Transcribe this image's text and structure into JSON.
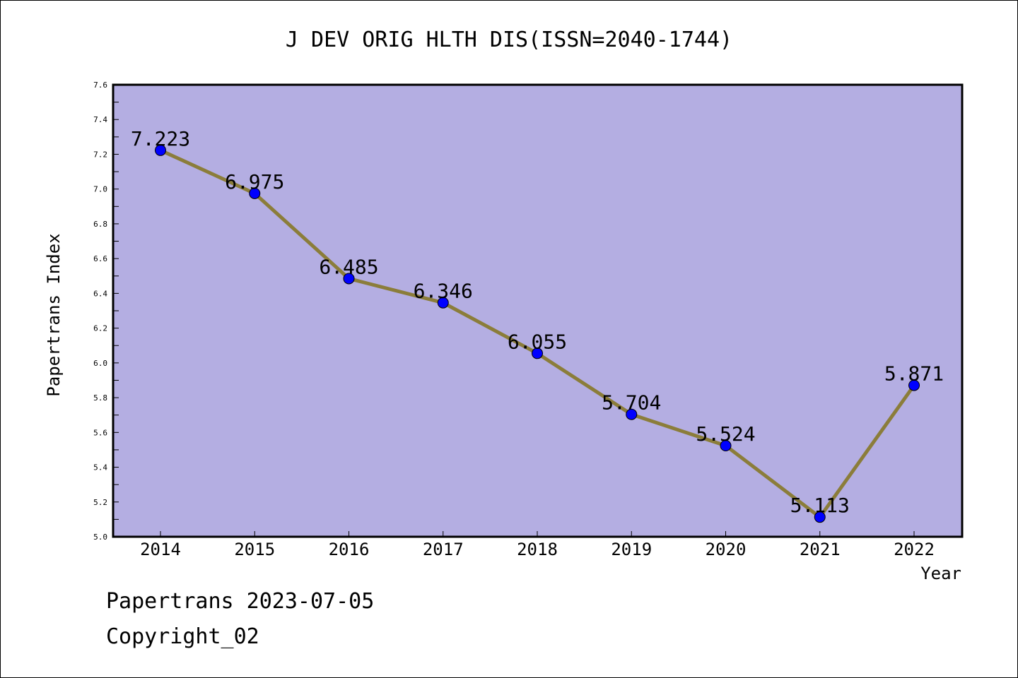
{
  "chart_data": {
    "type": "line",
    "title": "J DEV ORIG HLTH DIS(ISSN=2040-1744)",
    "xlabel": "Year",
    "ylabel": "Papertrans Index",
    "categories": [
      "2014",
      "2015",
      "2016",
      "2017",
      "2018",
      "2019",
      "2020",
      "2021",
      "2022"
    ],
    "series": [
      {
        "values": [
          7.223,
          6.975,
          6.485,
          6.346,
          6.055,
          5.704,
          5.524,
          5.113,
          5.871
        ],
        "labels": [
          "7.223",
          "6.975",
          "6.485",
          "6.346",
          "6.055",
          "5.704",
          "5.524",
          "5.113",
          "5.871"
        ]
      }
    ],
    "ylim": [
      5.0,
      7.6
    ],
    "yticks": [
      "5.0",
      "5.2",
      "5.4",
      "5.6",
      "5.8",
      "6.0",
      "6.2",
      "6.4",
      "6.6",
      "6.8",
      "7.0",
      "7.2",
      "7.4",
      "7.6"
    ],
    "grid": false,
    "colors": {
      "plot_background": "#b4aee2",
      "line": "#8b7d3a",
      "marker": "#0000ff"
    }
  },
  "footer": {
    "line1": "Papertrans 2023-07-05",
    "line2": "Copyright_02"
  }
}
